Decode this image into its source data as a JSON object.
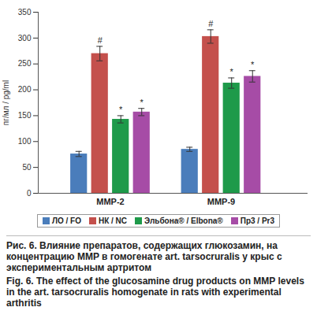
{
  "chart_data": {
    "type": "bar",
    "categories": [
      "MMP-2",
      "MMP-9"
    ],
    "series": [
      {
        "name": "ЛО / FO",
        "color": "#4a7dbb",
        "values": [
          76,
          85
        ],
        "errors": [
          5,
          4
        ],
        "annotations": [
          null,
          null
        ]
      },
      {
        "name": "НК / NC",
        "color": "#c4504c",
        "values": [
          270,
          303
        ],
        "errors": [
          14,
          13
        ],
        "annotations": [
          "#",
          "#"
        ]
      },
      {
        "name": "Эльбона® / Elbona®",
        "color": "#1e9a4a",
        "values": [
          143,
          213
        ],
        "errors": [
          7,
          10
        ],
        "annotations": [
          "*",
          "*"
        ]
      },
      {
        "name": "Пр3 / Pr3",
        "color": "#a64ca6",
        "values": [
          157,
          226
        ],
        "errors": [
          7,
          11
        ],
        "annotations": [
          "*",
          "*"
        ]
      }
    ],
    "y_label": "пг/мл / pg/ml",
    "ylim": [
      0,
      350
    ],
    "yticks": [
      0,
      50,
      100,
      150,
      200,
      250,
      300,
      350
    ],
    "grid": false,
    "legend": "bottom",
    "caption": [
      "Рис. 6. Влияние препаратов, содержащих глюкозамин, на концентрацию MMP в гомогенате art. tarsocruralis у крыс с экспериментальным артритом",
      "Fig. 6. The effect of the glucosamine drug products on MMP levels in the art. tarsocruralis homogenate in rats with experimental arthritis"
    ]
  }
}
